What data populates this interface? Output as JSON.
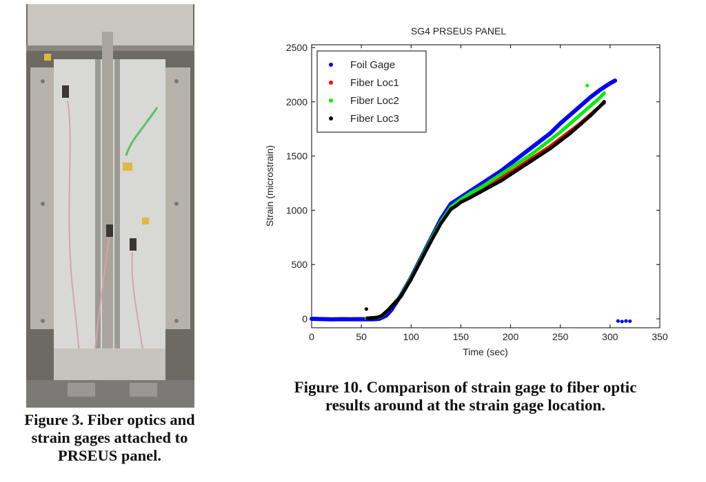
{
  "figure3": {
    "caption_lines": [
      "Figure 3. Fiber optics and",
      "strain gages attached to",
      "PRSEUS panel."
    ]
  },
  "figure10": {
    "caption_lines": [
      "Figure 10. Comparison of strain gage to fiber optic",
      "results around at the strain gage location."
    ]
  },
  "chart_data": {
    "type": "scatter",
    "title": "SG4 PRSEUS PANEL",
    "xlabel": "Time (sec)",
    "ylabel": "Strain (microstrain)",
    "xlim": [
      0,
      350
    ],
    "ylim": [
      -60,
      2500
    ],
    "xticks": [
      0,
      50,
      100,
      150,
      200,
      250,
      300,
      350
    ],
    "yticks": [
      0,
      500,
      1000,
      1500,
      2000,
      2500
    ],
    "grid": false,
    "legend_position": "top-left",
    "series": [
      {
        "name": "Foil Gage",
        "color": "#0000ff",
        "points": [
          [
            0,
            0
          ],
          [
            10,
            -2
          ],
          [
            20,
            -5
          ],
          [
            30,
            -3
          ],
          [
            40,
            -4
          ],
          [
            50,
            -3
          ],
          [
            60,
            -5
          ],
          [
            68,
            0
          ],
          [
            75,
            30
          ],
          [
            80,
            80
          ],
          [
            90,
            220
          ],
          [
            100,
            380
          ],
          [
            110,
            560
          ],
          [
            120,
            740
          ],
          [
            130,
            920
          ],
          [
            140,
            1060
          ],
          [
            145,
            1090
          ],
          [
            150,
            1120
          ],
          [
            160,
            1180
          ],
          [
            170,
            1240
          ],
          [
            180,
            1300
          ],
          [
            190,
            1360
          ],
          [
            200,
            1430
          ],
          [
            210,
            1500
          ],
          [
            220,
            1570
          ],
          [
            230,
            1640
          ],
          [
            240,
            1710
          ],
          [
            250,
            1800
          ],
          [
            260,
            1880
          ],
          [
            270,
            1960
          ],
          [
            280,
            2040
          ],
          [
            290,
            2110
          ],
          [
            300,
            2170
          ],
          [
            305,
            2195
          ],
          [
            308,
            -20
          ],
          [
            312,
            -25
          ],
          [
            316,
            -20
          ],
          [
            320,
            -22
          ]
        ]
      },
      {
        "name": "Fiber Loc1",
        "color": "#ff0000",
        "points": [
          [
            55,
            5
          ],
          [
            60,
            8
          ],
          [
            65,
            10
          ],
          [
            70,
            20
          ],
          [
            75,
            60
          ],
          [
            80,
            110
          ],
          [
            90,
            210
          ],
          [
            100,
            370
          ],
          [
            110,
            540
          ],
          [
            120,
            720
          ],
          [
            130,
            880
          ],
          [
            140,
            1010
          ],
          [
            145,
            1040
          ],
          [
            150,
            1080
          ],
          [
            160,
            1130
          ],
          [
            170,
            1180
          ],
          [
            180,
            1240
          ],
          [
            190,
            1300
          ],
          [
            200,
            1350
          ],
          [
            210,
            1410
          ],
          [
            220,
            1470
          ],
          [
            230,
            1530
          ],
          [
            240,
            1590
          ],
          [
            250,
            1660
          ],
          [
            260,
            1730
          ],
          [
            270,
            1800
          ],
          [
            280,
            1880
          ],
          [
            290,
            1960
          ],
          [
            294,
            1990
          ]
        ]
      },
      {
        "name": "Fiber Loc2",
        "color": "#00ee00",
        "points": [
          [
            55,
            6
          ],
          [
            60,
            9
          ],
          [
            65,
            11
          ],
          [
            70,
            22
          ],
          [
            75,
            62
          ],
          [
            80,
            115
          ],
          [
            90,
            215
          ],
          [
            100,
            375
          ],
          [
            110,
            550
          ],
          [
            120,
            730
          ],
          [
            130,
            895
          ],
          [
            140,
            1030
          ],
          [
            145,
            1065
          ],
          [
            150,
            1100
          ],
          [
            160,
            1160
          ],
          [
            170,
            1210
          ],
          [
            180,
            1270
          ],
          [
            190,
            1330
          ],
          [
            200,
            1390
          ],
          [
            210,
            1450
          ],
          [
            220,
            1510
          ],
          [
            230,
            1580
          ],
          [
            240,
            1650
          ],
          [
            250,
            1720
          ],
          [
            260,
            1800
          ],
          [
            270,
            1880
          ],
          [
            277,
            2150
          ],
          [
            280,
            1960
          ],
          [
            290,
            2040
          ],
          [
            294,
            2080
          ]
        ]
      },
      {
        "name": "Fiber Loc3",
        "color": "#000000",
        "points": [
          [
            55,
            90
          ],
          [
            56,
            5
          ],
          [
            60,
            8
          ],
          [
            65,
            12
          ],
          [
            70,
            25
          ],
          [
            75,
            65
          ],
          [
            80,
            110
          ],
          [
            90,
            210
          ],
          [
            100,
            365
          ],
          [
            110,
            540
          ],
          [
            120,
            715
          ],
          [
            130,
            880
          ],
          [
            140,
            1010
          ],
          [
            145,
            1040
          ],
          [
            150,
            1075
          ],
          [
            160,
            1120
          ],
          [
            170,
            1170
          ],
          [
            180,
            1220
          ],
          [
            190,
            1270
          ],
          [
            200,
            1330
          ],
          [
            210,
            1390
          ],
          [
            220,
            1450
          ],
          [
            230,
            1510
          ],
          [
            240,
            1570
          ],
          [
            250,
            1640
          ],
          [
            260,
            1710
          ],
          [
            270,
            1790
          ],
          [
            280,
            1870
          ],
          [
            290,
            1960
          ],
          [
            294,
            2000
          ]
        ]
      }
    ]
  }
}
